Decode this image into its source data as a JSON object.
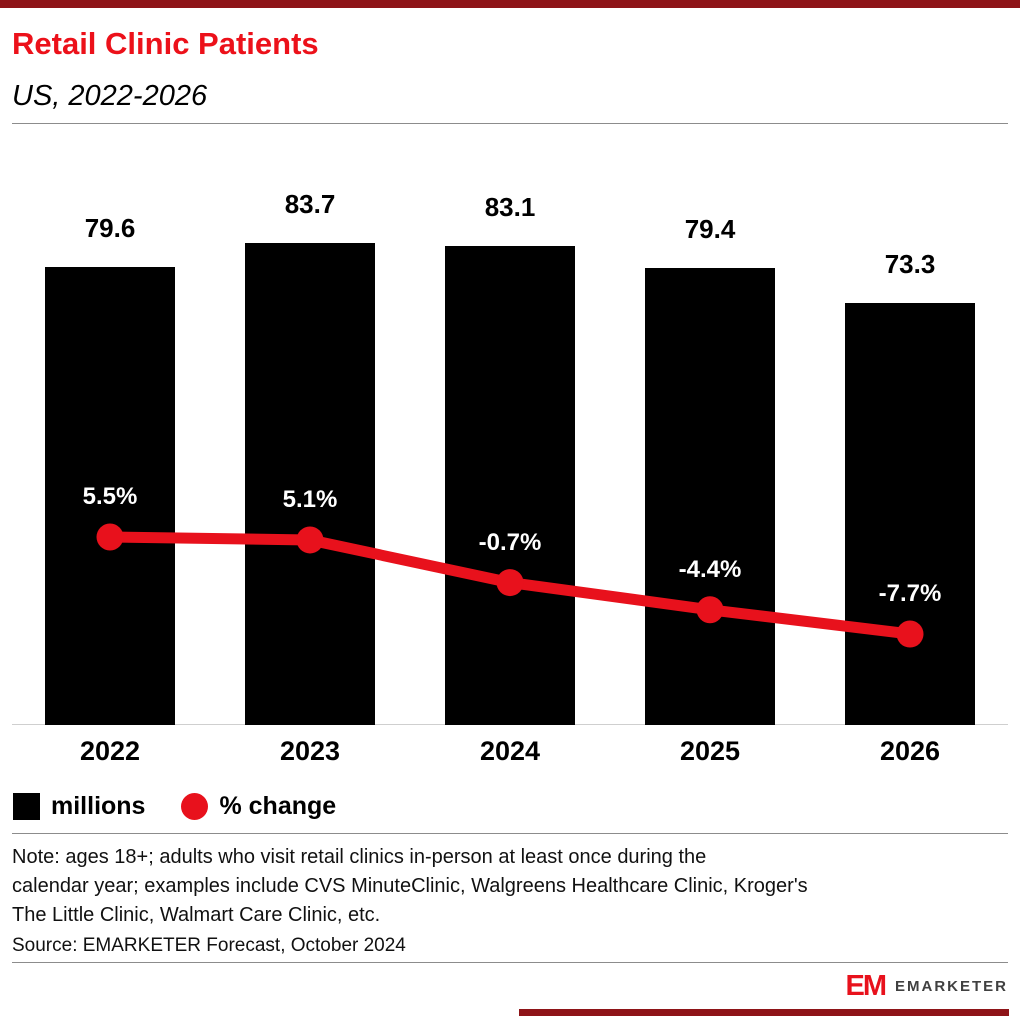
{
  "header": {
    "title": "Retail Clinic Patients",
    "subtitle": "US, 2022-2026"
  },
  "chart_data": {
    "type": "bar",
    "subtype": "bar-line-combo",
    "title": "Retail Clinic Patients",
    "subtitle": "US, 2022-2026",
    "categories": [
      "2022",
      "2023",
      "2024",
      "2025",
      "2026"
    ],
    "series": [
      {
        "name": "millions",
        "type": "bar",
        "color": "#000000",
        "values": [
          79.6,
          83.7,
          83.1,
          79.4,
          73.3
        ],
        "labels": [
          "79.6",
          "83.7",
          "83.1",
          "79.4",
          "73.3"
        ]
      },
      {
        "name": "% change",
        "type": "line",
        "color": "#E8111C",
        "values": [
          5.5,
          5.1,
          -0.7,
          -4.4,
          -7.7
        ],
        "labels": [
          "5.5%",
          "5.1%",
          "-0.7%",
          "-4.4%",
          "-7.7%"
        ]
      }
    ],
    "bar_value_range": [
      0,
      90
    ],
    "line_value_range": [
      -10,
      8
    ],
    "grid": false,
    "legend_position": "bottom-left"
  },
  "legend": {
    "items": [
      {
        "label": "millions",
        "swatch": "square",
        "color": "#000000"
      },
      {
        "label": "% change",
        "swatch": "circle",
        "color": "#E8111C"
      }
    ]
  },
  "note": {
    "lines": [
      "Note: ages 18+; adults who visit retail clinics in-person at least once during the",
      "calendar year; examples include CVS MinuteClinic, Walgreens Healthcare Clinic, Kroger's",
      "The Little Clinic, Walmart Care Clinic, etc."
    ]
  },
  "source": "Source: EMARKETER Forecast, October 2024",
  "branding": {
    "monogram": "EM",
    "wordmark": "EMARKETER"
  },
  "colors": {
    "accent_red": "#E8111C",
    "title_red": "#EC111A",
    "strip_maroon": "#8E1418",
    "bar_black": "#000000"
  }
}
